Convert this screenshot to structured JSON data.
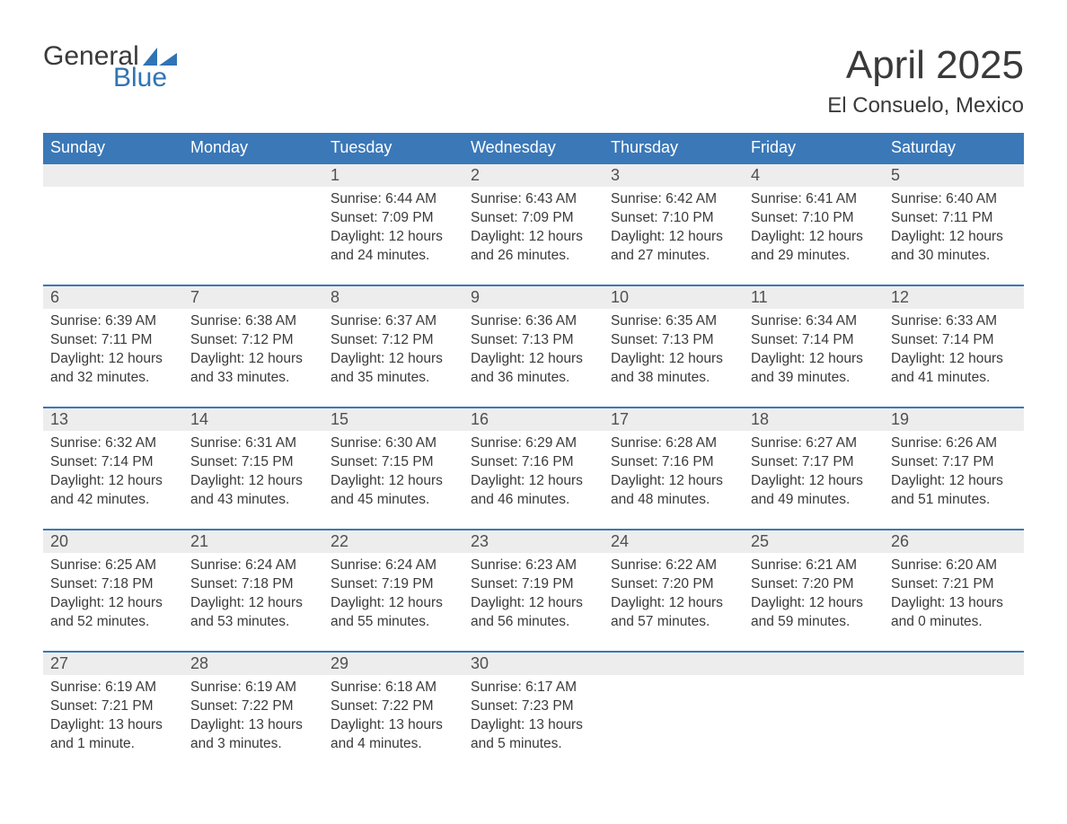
{
  "logo": {
    "word1": "General",
    "word2": "Blue"
  },
  "title": "April 2025",
  "location": "El Consuelo, Mexico",
  "colors": {
    "header_bg": "#3b78b8",
    "header_text": "#ffffff",
    "daynum_bg": "#ededed",
    "daynum_border": "#3b78b8",
    "body_text": "#3a3a3a",
    "logo_blue": "#2f74b5"
  },
  "day_headers": [
    "Sunday",
    "Monday",
    "Tuesday",
    "Wednesday",
    "Thursday",
    "Friday",
    "Saturday"
  ],
  "weeks": [
    [
      null,
      null,
      {
        "n": "1",
        "sr": "6:44 AM",
        "ss": "7:09 PM",
        "dl": "12 hours and 24 minutes."
      },
      {
        "n": "2",
        "sr": "6:43 AM",
        "ss": "7:09 PM",
        "dl": "12 hours and 26 minutes."
      },
      {
        "n": "3",
        "sr": "6:42 AM",
        "ss": "7:10 PM",
        "dl": "12 hours and 27 minutes."
      },
      {
        "n": "4",
        "sr": "6:41 AM",
        "ss": "7:10 PM",
        "dl": "12 hours and 29 minutes."
      },
      {
        "n": "5",
        "sr": "6:40 AM",
        "ss": "7:11 PM",
        "dl": "12 hours and 30 minutes."
      }
    ],
    [
      {
        "n": "6",
        "sr": "6:39 AM",
        "ss": "7:11 PM",
        "dl": "12 hours and 32 minutes."
      },
      {
        "n": "7",
        "sr": "6:38 AM",
        "ss": "7:12 PM",
        "dl": "12 hours and 33 minutes."
      },
      {
        "n": "8",
        "sr": "6:37 AM",
        "ss": "7:12 PM",
        "dl": "12 hours and 35 minutes."
      },
      {
        "n": "9",
        "sr": "6:36 AM",
        "ss": "7:13 PM",
        "dl": "12 hours and 36 minutes."
      },
      {
        "n": "10",
        "sr": "6:35 AM",
        "ss": "7:13 PM",
        "dl": "12 hours and 38 minutes."
      },
      {
        "n": "11",
        "sr": "6:34 AM",
        "ss": "7:14 PM",
        "dl": "12 hours and 39 minutes."
      },
      {
        "n": "12",
        "sr": "6:33 AM",
        "ss": "7:14 PM",
        "dl": "12 hours and 41 minutes."
      }
    ],
    [
      {
        "n": "13",
        "sr": "6:32 AM",
        "ss": "7:14 PM",
        "dl": "12 hours and 42 minutes."
      },
      {
        "n": "14",
        "sr": "6:31 AM",
        "ss": "7:15 PM",
        "dl": "12 hours and 43 minutes."
      },
      {
        "n": "15",
        "sr": "6:30 AM",
        "ss": "7:15 PM",
        "dl": "12 hours and 45 minutes."
      },
      {
        "n": "16",
        "sr": "6:29 AM",
        "ss": "7:16 PM",
        "dl": "12 hours and 46 minutes."
      },
      {
        "n": "17",
        "sr": "6:28 AM",
        "ss": "7:16 PM",
        "dl": "12 hours and 48 minutes."
      },
      {
        "n": "18",
        "sr": "6:27 AM",
        "ss": "7:17 PM",
        "dl": "12 hours and 49 minutes."
      },
      {
        "n": "19",
        "sr": "6:26 AM",
        "ss": "7:17 PM",
        "dl": "12 hours and 51 minutes."
      }
    ],
    [
      {
        "n": "20",
        "sr": "6:25 AM",
        "ss": "7:18 PM",
        "dl": "12 hours and 52 minutes."
      },
      {
        "n": "21",
        "sr": "6:24 AM",
        "ss": "7:18 PM",
        "dl": "12 hours and 53 minutes."
      },
      {
        "n": "22",
        "sr": "6:24 AM",
        "ss": "7:19 PM",
        "dl": "12 hours and 55 minutes."
      },
      {
        "n": "23",
        "sr": "6:23 AM",
        "ss": "7:19 PM",
        "dl": "12 hours and 56 minutes."
      },
      {
        "n": "24",
        "sr": "6:22 AM",
        "ss": "7:20 PM",
        "dl": "12 hours and 57 minutes."
      },
      {
        "n": "25",
        "sr": "6:21 AM",
        "ss": "7:20 PM",
        "dl": "12 hours and 59 minutes."
      },
      {
        "n": "26",
        "sr": "6:20 AM",
        "ss": "7:21 PM",
        "dl": "13 hours and 0 minutes."
      }
    ],
    [
      {
        "n": "27",
        "sr": "6:19 AM",
        "ss": "7:21 PM",
        "dl": "13 hours and 1 minute."
      },
      {
        "n": "28",
        "sr": "6:19 AM",
        "ss": "7:22 PM",
        "dl": "13 hours and 3 minutes."
      },
      {
        "n": "29",
        "sr": "6:18 AM",
        "ss": "7:22 PM",
        "dl": "13 hours and 4 minutes."
      },
      {
        "n": "30",
        "sr": "6:17 AM",
        "ss": "7:23 PM",
        "dl": "13 hours and 5 minutes."
      },
      null,
      null,
      null
    ]
  ],
  "labels": {
    "sunrise": "Sunrise: ",
    "sunset": "Sunset: ",
    "daylight": "Daylight: "
  }
}
